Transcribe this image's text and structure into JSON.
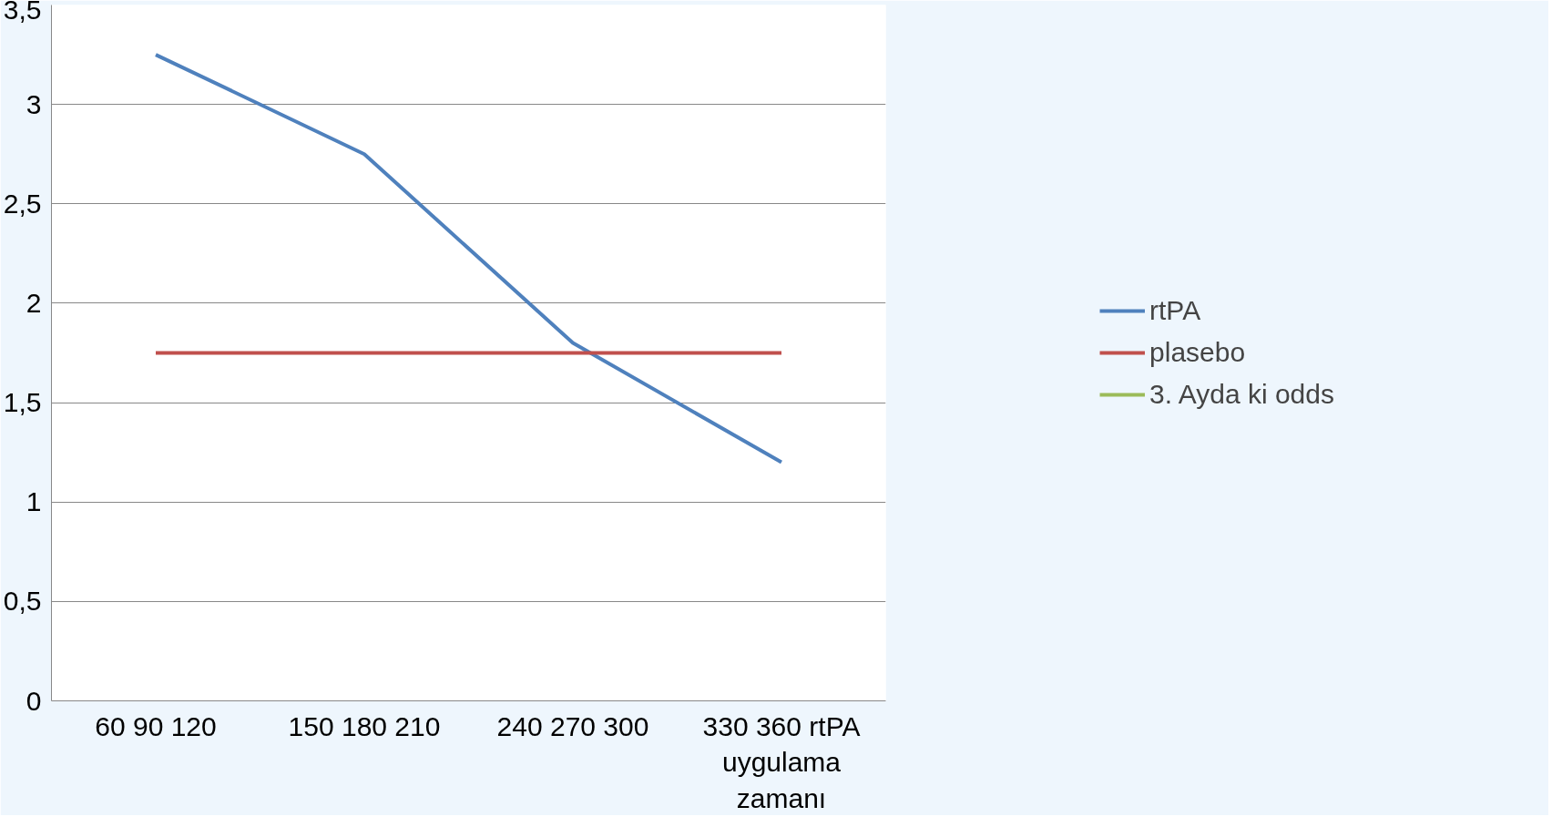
{
  "chart_data": {
    "type": "line",
    "categories": [
      "60 90 120",
      "150 180 210",
      "240 270 300",
      "330 360 rtPA uygulama zamanı"
    ],
    "series": [
      {
        "name": "rtPA",
        "color": "#4f81bd",
        "values": [
          3.25,
          2.75,
          1.8,
          1.2
        ]
      },
      {
        "name": "plasebo",
        "color": "#c0504d",
        "values": [
          1.75,
          1.75,
          1.75,
          1.75
        ]
      },
      {
        "name": "3. Ayda ki odds",
        "color": "#9bbb59",
        "values": [
          null,
          null,
          null,
          null
        ]
      }
    ],
    "ylim": [
      0,
      3.5
    ],
    "yticks": [
      0,
      {
        "value": 0.5,
        "label": "0,5"
      },
      1,
      {
        "value": 1.5,
        "label": "1,5"
      },
      2,
      {
        "value": 2.5,
        "label": "2,5"
      },
      3,
      {
        "value": 3.5,
        "label": "3,5"
      }
    ],
    "grid": "y",
    "legend": "right",
    "marker": "none",
    "line_style": "solid"
  }
}
